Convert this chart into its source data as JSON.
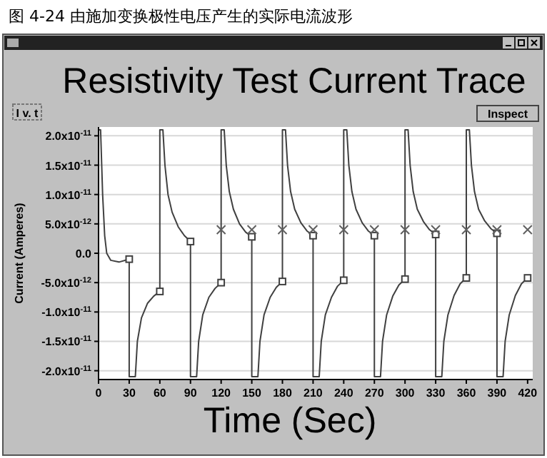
{
  "chart_data": {
    "type": "line",
    "title": "Resistivity Test Current Trace",
    "xlabel": "Time (Sec)",
    "ylabel": "Current (Amperes)",
    "annotations": [
      "图 4-24 由施加变换极性电压产生的实际电流波形",
      "I v. t",
      "Inspect"
    ],
    "xlim": [
      0,
      425
    ],
    "xticks": [
      0,
      30,
      60,
      90,
      120,
      150,
      180,
      210,
      240,
      270,
      300,
      330,
      360,
      390,
      420
    ],
    "ylim": [
      -2.15e-11,
      2.15e-11
    ],
    "yticks": [
      {
        "value": -2e-11,
        "label": "-2.0x10$^{-11}$"
      },
      {
        "value": -1.5e-11,
        "label": "-1.5x10$^{-11}$"
      },
      {
        "value": -1e-11,
        "label": "-1.0x10$^{-11}$"
      },
      {
        "value": -5e-12,
        "label": "-5.0x10$^{-12}$"
      },
      {
        "value": 0,
        "label": "0.0"
      },
      {
        "value": 5e-12,
        "label": "5.0x10$^{-12}$"
      },
      {
        "value": 1e-11,
        "label": "1.0x10$^{-11}$"
      },
      {
        "value": 1.5e-11,
        "label": "1.5x10$^{-11}$"
      },
      {
        "value": 2e-11,
        "label": "2.0x10$^{-11}$"
      }
    ],
    "grid": "y",
    "series": [
      {
        "color": "#404040",
        "marker": "none",
        "x": [
          0,
          2,
          4,
          6,
          8,
          12,
          20,
          30,
          30,
          36,
          38,
          42,
          48,
          54,
          60,
          60,
          63,
          65,
          68,
          72,
          78,
          84,
          90,
          90,
          96,
          98,
          102,
          108,
          114,
          120,
          120,
          123,
          125,
          128,
          132,
          138,
          144,
          150,
          150,
          156,
          158,
          162,
          168,
          174,
          180,
          180,
          183,
          185,
          188,
          192,
          198,
          204,
          210,
          210,
          216,
          218,
          222,
          228,
          234,
          240,
          240,
          243,
          245,
          248,
          252,
          258,
          264,
          270,
          270,
          276,
          278,
          282,
          288,
          294,
          300,
          300,
          303,
          305,
          308,
          312,
          318,
          324,
          330,
          330,
          336,
          338,
          342,
          348,
          354,
          360,
          360,
          363,
          365,
          368,
          372,
          378,
          384,
          390,
          390,
          396,
          398,
          402,
          408,
          414,
          420
        ],
        "values": [
          2.1e-11,
          2.1e-11,
          1e-11,
          3e-12,
          0,
          -1.2e-12,
          -1.5e-12,
          -1e-12,
          -2.1e-11,
          -2.1e-11,
          -1.5e-11,
          -1.1e-11,
          -8.5e-12,
          -7.3e-12,
          -6.5e-12,
          2.1e-11,
          2.1e-11,
          1.5e-11,
          1e-11,
          7e-12,
          4.5e-12,
          3e-12,
          2e-12,
          -2.1e-11,
          -2.1e-11,
          -1.5e-11,
          -1.05e-11,
          -7.5e-12,
          -6e-12,
          -5e-12,
          2.1e-11,
          2.1e-11,
          1.5e-11,
          1.05e-11,
          7.5e-12,
          5e-12,
          3.6e-12,
          2.8e-12,
          -2.1e-11,
          -2.1e-11,
          -1.5e-11,
          -1.05e-11,
          -7.5e-12,
          -5.8e-12,
          -4.8e-12,
          2.1e-11,
          2.1e-11,
          1.5e-11,
          1.05e-11,
          7.5e-12,
          5.2e-12,
          3.8e-12,
          3e-12,
          -2.1e-11,
          -2.1e-11,
          -1.5e-11,
          -1.05e-11,
          -7.5e-12,
          -5.6e-12,
          -4.6e-12,
          2.1e-11,
          2.1e-11,
          1.5e-11,
          1.05e-11,
          7.5e-12,
          5.2e-12,
          3.8e-12,
          3e-12,
          -2.1e-11,
          -2.1e-11,
          -1.5e-11,
          -1.05e-11,
          -7.3e-12,
          -5.4e-12,
          -4.4e-12,
          2.1e-11,
          2.1e-11,
          1.5e-11,
          1.05e-11,
          7.5e-12,
          5.4e-12,
          4e-12,
          3.2e-12,
          -2.1e-11,
          -2.1e-11,
          -1.5e-11,
          -1.05e-11,
          -7.2e-12,
          -5.2e-12,
          -4.2e-12,
          2.1e-11,
          2.1e-11,
          1.5e-11,
          1.05e-11,
          7.5e-12,
          5.5e-12,
          4.2e-12,
          3.4e-12,
          -2.1e-11,
          -2.1e-11,
          -1.5e-11,
          -1.05e-11,
          -7.2e-12,
          -5.2e-12,
          -4.2e-12
        ]
      },
      {
        "type": "scatter",
        "color": "#404040",
        "marker": "square",
        "x": [
          30,
          60,
          90,
          120,
          150,
          180,
          210,
          240,
          270,
          300,
          330,
          360,
          390,
          420
        ],
        "values": [
          -1e-12,
          -6.5e-12,
          2e-12,
          -5e-12,
          2.8e-12,
          -4.8e-12,
          3e-12,
          -4.6e-12,
          3e-12,
          -4.4e-12,
          3.2e-12,
          -4.2e-12,
          3.4e-12,
          -4.2e-12
        ]
      },
      {
        "type": "scatter",
        "color": "#606060",
        "marker": "cross",
        "x": [
          120,
          150,
          180,
          210,
          240,
          270,
          300,
          330,
          360,
          390,
          420
        ],
        "values": [
          4e-12,
          4e-12,
          4e-12,
          4e-12,
          4e-12,
          4e-12,
          4e-12,
          4e-12,
          4e-12,
          4e-12,
          4e-12
        ]
      }
    ]
  }
}
